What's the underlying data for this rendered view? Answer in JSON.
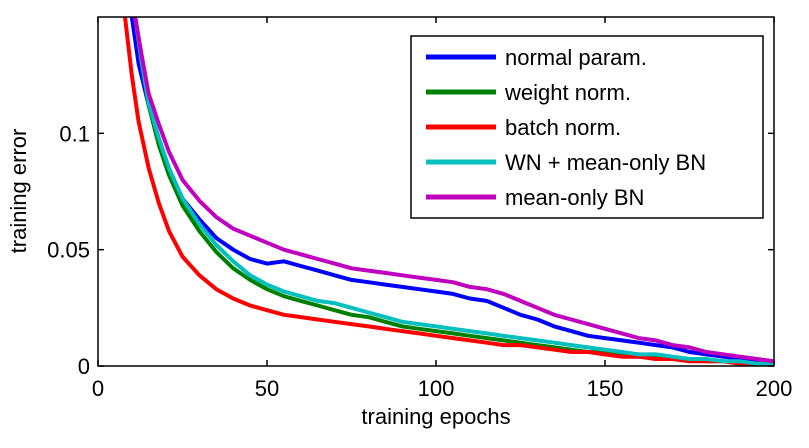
{
  "chart_data": {
    "type": "line",
    "xlabel": "training epochs",
    "ylabel": "training error",
    "xlim": [
      0,
      200
    ],
    "ylim": [
      0,
      0.15
    ],
    "xticks": [
      0,
      50,
      100,
      150,
      200
    ],
    "xtick_labels": [
      "0",
      "50",
      "100",
      "150",
      "200"
    ],
    "yticks": [
      0,
      0.05,
      0.1
    ],
    "ytick_labels": [
      "0",
      "0.05",
      "0.1"
    ],
    "grid": false,
    "legend_position": "top-right",
    "series": [
      {
        "name": "normal param.",
        "color": "#0000ff",
        "x": [
          10,
          12,
          15,
          18,
          21,
          25,
          30,
          35,
          40,
          45,
          50,
          55,
          60,
          65,
          70,
          75,
          80,
          85,
          90,
          95,
          100,
          105,
          110,
          115,
          120,
          125,
          130,
          135,
          140,
          145,
          150,
          155,
          160,
          165,
          170,
          175,
          180,
          185,
          190,
          195,
          200
        ],
        "y": [
          0.15,
          0.13,
          0.112,
          0.097,
          0.083,
          0.072,
          0.063,
          0.055,
          0.05,
          0.046,
          0.044,
          0.045,
          0.043,
          0.041,
          0.039,
          0.037,
          0.036,
          0.035,
          0.034,
          0.033,
          0.032,
          0.031,
          0.029,
          0.028,
          0.025,
          0.022,
          0.02,
          0.017,
          0.015,
          0.013,
          0.012,
          0.011,
          0.01,
          0.009,
          0.008,
          0.006,
          0.005,
          0.004,
          0.003,
          0.002,
          0.001
        ]
      },
      {
        "name": "weight norm.",
        "color": "#008000",
        "x": [
          11,
          13,
          15,
          18,
          21,
          25,
          30,
          35,
          40,
          45,
          50,
          55,
          60,
          65,
          70,
          75,
          80,
          85,
          90,
          95,
          100,
          105,
          110,
          115,
          120,
          125,
          130,
          135,
          140,
          145,
          150,
          155,
          160,
          165,
          170,
          175,
          180,
          185,
          190,
          195,
          200
        ],
        "y": [
          0.15,
          0.13,
          0.112,
          0.095,
          0.082,
          0.069,
          0.058,
          0.049,
          0.042,
          0.037,
          0.033,
          0.03,
          0.028,
          0.026,
          0.024,
          0.022,
          0.021,
          0.019,
          0.017,
          0.016,
          0.015,
          0.014,
          0.013,
          0.012,
          0.011,
          0.01,
          0.009,
          0.008,
          0.007,
          0.006,
          0.006,
          0.005,
          0.004,
          0.004,
          0.003,
          0.003,
          0.002,
          0.002,
          0.001,
          0.001,
          0.001
        ]
      },
      {
        "name": "batch norm.",
        "color": "#ff0000",
        "x": [
          8,
          10,
          12,
          15,
          18,
          21,
          25,
          30,
          35,
          40,
          45,
          50,
          55,
          60,
          65,
          70,
          75,
          80,
          85,
          90,
          95,
          100,
          105,
          110,
          115,
          120,
          125,
          130,
          135,
          140,
          145,
          150,
          155,
          160,
          165,
          170,
          175,
          180,
          185,
          190,
          195,
          200
        ],
        "y": [
          0.15,
          0.125,
          0.105,
          0.085,
          0.07,
          0.058,
          0.047,
          0.039,
          0.033,
          0.029,
          0.026,
          0.024,
          0.022,
          0.021,
          0.02,
          0.019,
          0.018,
          0.017,
          0.016,
          0.015,
          0.014,
          0.013,
          0.012,
          0.011,
          0.01,
          0.009,
          0.009,
          0.008,
          0.007,
          0.006,
          0.006,
          0.005,
          0.004,
          0.004,
          0.003,
          0.003,
          0.002,
          0.002,
          0.002,
          0.001,
          0.001,
          0.001
        ]
      },
      {
        "name": "WN + mean-only BN",
        "color": "#00bfbf",
        "x": [
          11,
          13,
          15,
          18,
          21,
          25,
          30,
          35,
          40,
          45,
          50,
          55,
          60,
          65,
          70,
          75,
          80,
          85,
          90,
          95,
          100,
          105,
          110,
          115,
          120,
          125,
          130,
          135,
          140,
          145,
          150,
          155,
          160,
          165,
          170,
          175,
          180,
          185,
          190,
          195,
          200
        ],
        "y": [
          0.15,
          0.13,
          0.113,
          0.098,
          0.085,
          0.072,
          0.061,
          0.052,
          0.045,
          0.039,
          0.035,
          0.032,
          0.03,
          0.028,
          0.027,
          0.025,
          0.023,
          0.021,
          0.019,
          0.018,
          0.017,
          0.016,
          0.015,
          0.014,
          0.013,
          0.012,
          0.011,
          0.01,
          0.009,
          0.008,
          0.007,
          0.006,
          0.005,
          0.005,
          0.004,
          0.003,
          0.003,
          0.002,
          0.002,
          0.001,
          0.001
        ]
      },
      {
        "name": "mean-only BN",
        "color": "#bf00bf",
        "x": [
          11,
          13,
          15,
          18,
          21,
          25,
          30,
          35,
          40,
          45,
          50,
          55,
          60,
          65,
          70,
          75,
          80,
          85,
          90,
          95,
          100,
          105,
          110,
          115,
          120,
          125,
          130,
          135,
          140,
          145,
          150,
          155,
          160,
          165,
          170,
          175,
          180,
          185,
          190,
          195,
          200
        ],
        "y": [
          0.15,
          0.133,
          0.117,
          0.104,
          0.092,
          0.08,
          0.071,
          0.064,
          0.059,
          0.056,
          0.053,
          0.05,
          0.048,
          0.046,
          0.044,
          0.042,
          0.041,
          0.04,
          0.039,
          0.038,
          0.037,
          0.036,
          0.034,
          0.033,
          0.031,
          0.028,
          0.025,
          0.022,
          0.02,
          0.018,
          0.016,
          0.014,
          0.012,
          0.011,
          0.009,
          0.008,
          0.006,
          0.005,
          0.004,
          0.003,
          0.002
        ]
      }
    ]
  }
}
